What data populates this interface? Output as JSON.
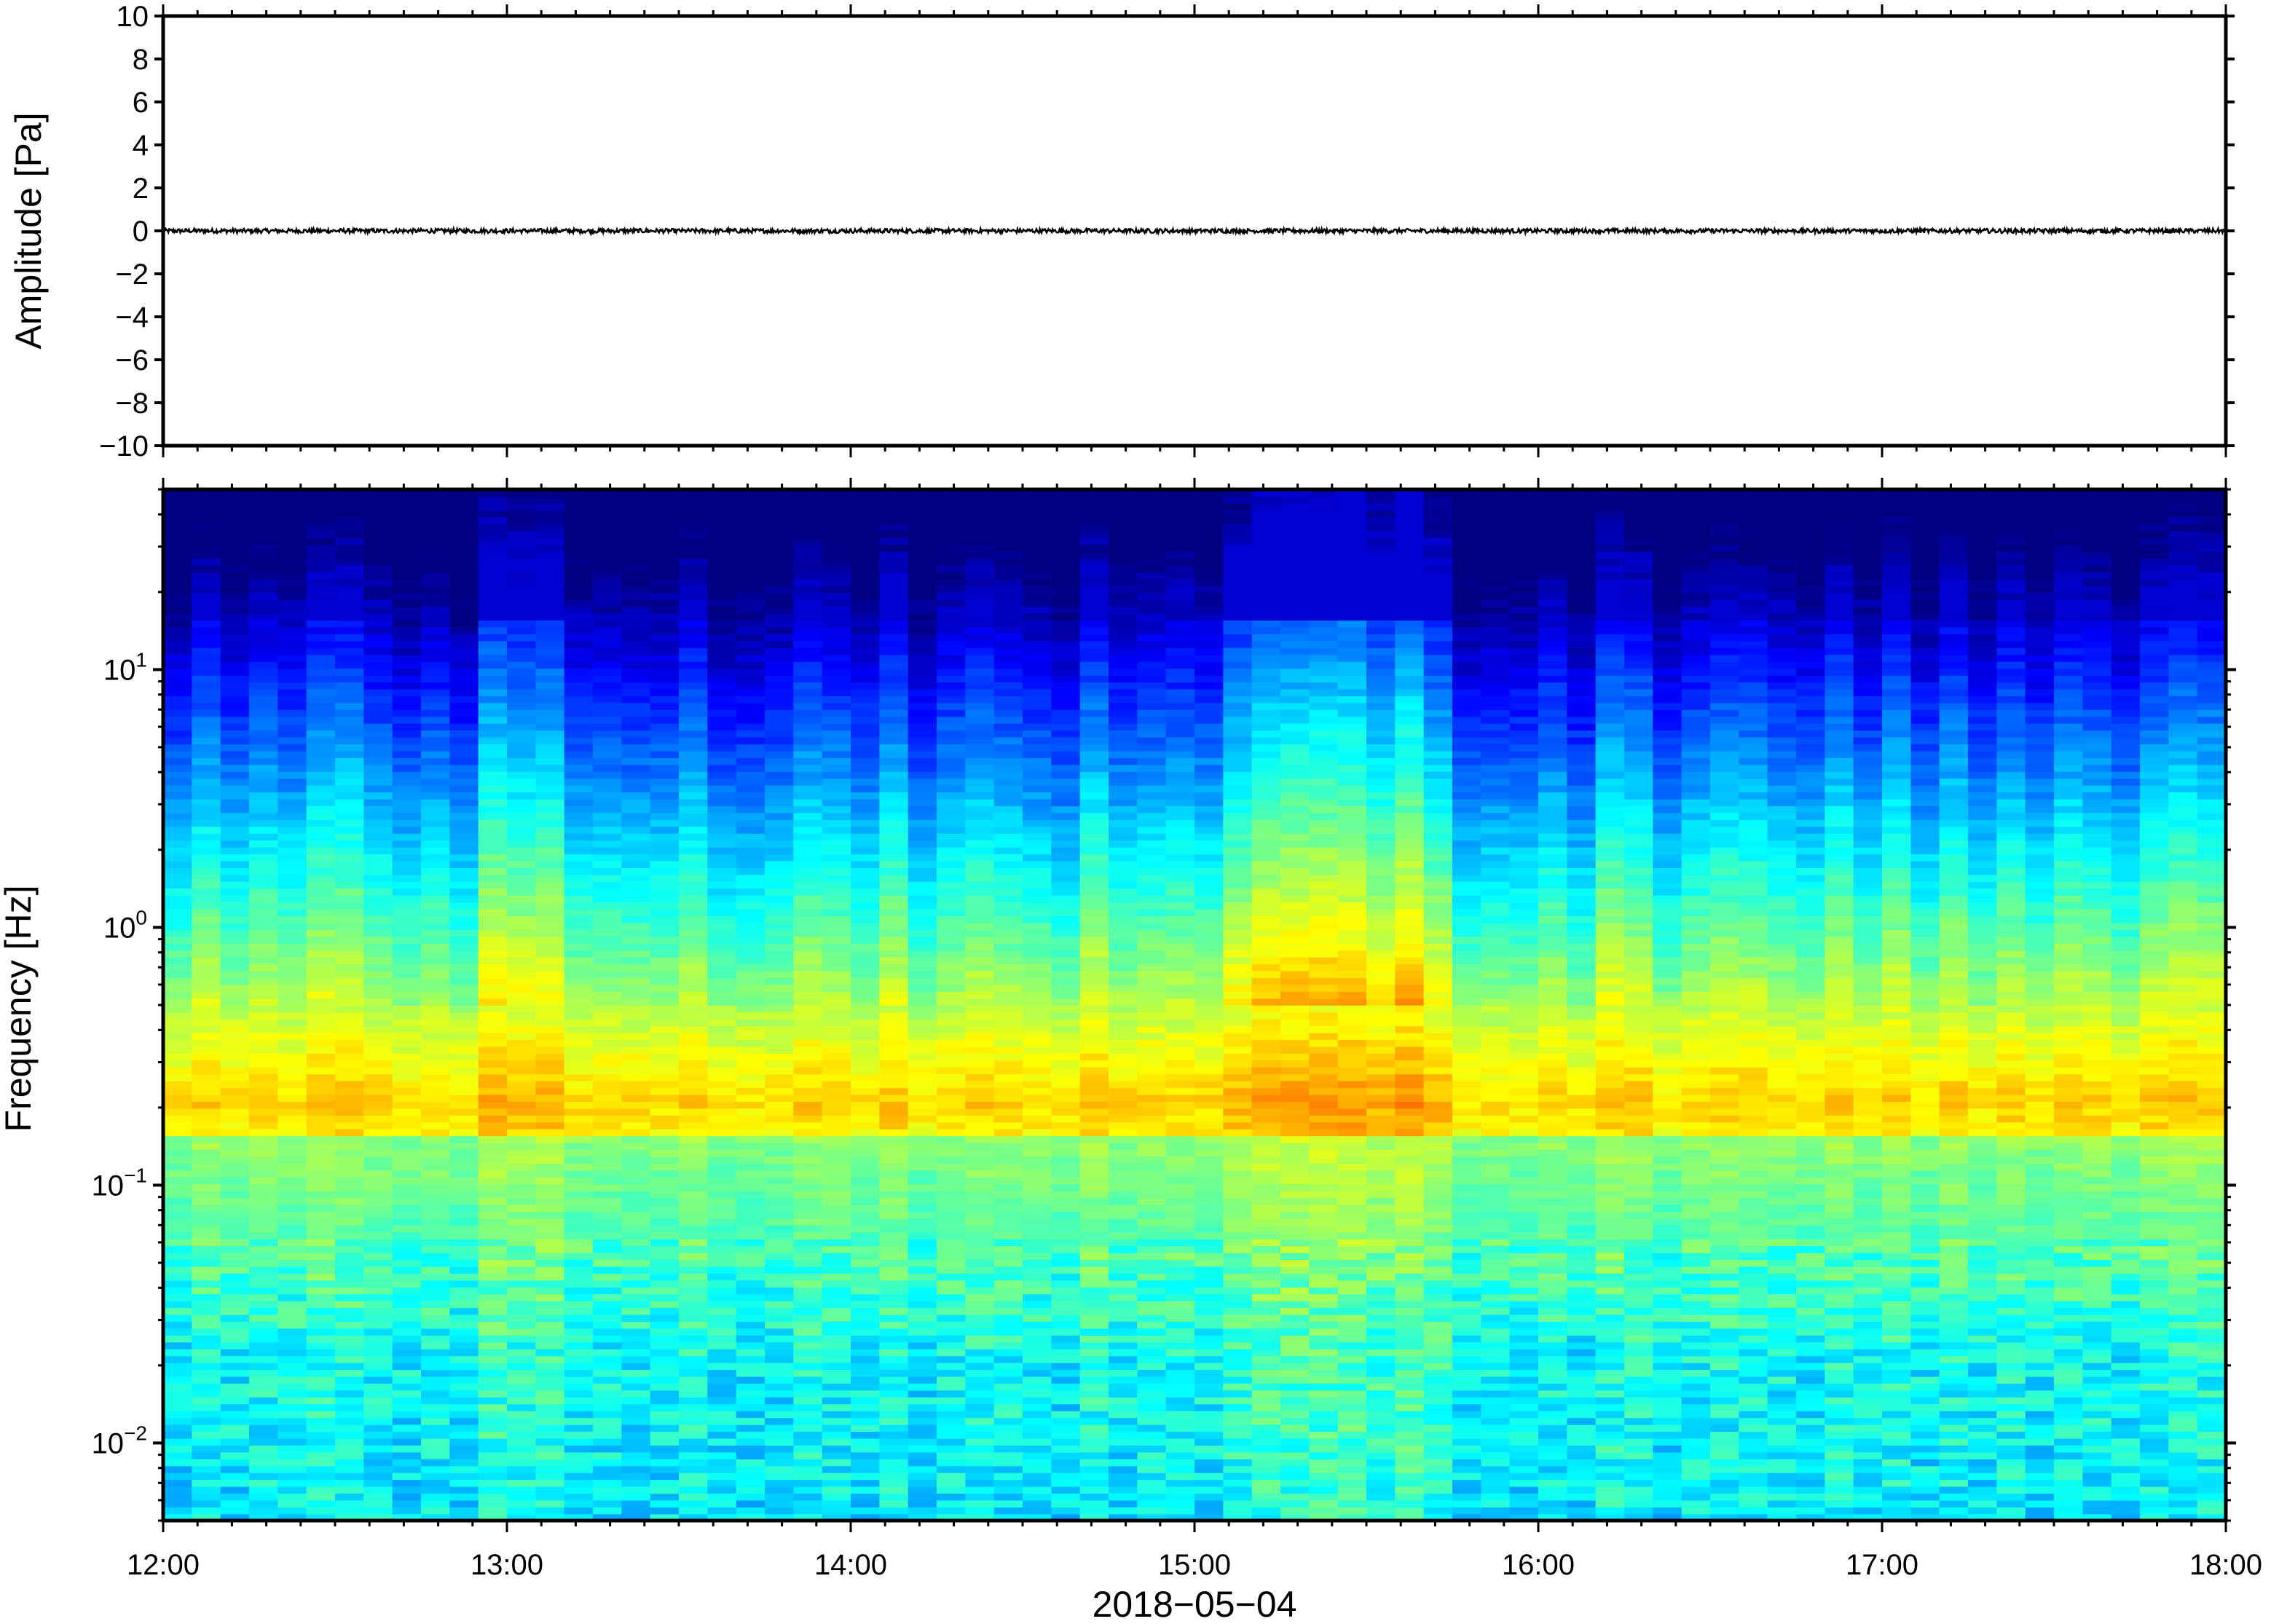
{
  "chart_data": [
    {
      "type": "line",
      "panel": "waveform",
      "ylabel": "Amplitude [Pa]",
      "ylim": [
        -10,
        10
      ],
      "yticks": [
        10,
        8,
        6,
        4,
        2,
        0,
        -2,
        -4,
        -6,
        -8,
        -10
      ],
      "ytick_labels": [
        "10",
        "8",
        "6",
        "4",
        "2",
        "0",
        "−2",
        "−4",
        "−6",
        "−8",
        "−10"
      ],
      "xlim": [
        "12:00",
        "18:00"
      ],
      "grid": false,
      "series": [
        {
          "description_values": "near-zero infrasound trace",
          "x_range": [
            "12:00",
            "18:00"
          ],
          "y_min": -0.1,
          "y_max": 0.1,
          "color": "#000000"
        }
      ]
    },
    {
      "type": "heatmap",
      "panel": "spectrogram",
      "ylabel": "Frequency [Hz]",
      "y_scale": "log",
      "ylim": [
        0.005,
        50
      ],
      "yticks": [
        0.01,
        0.1,
        1,
        10
      ],
      "ytick_labels": [
        {
          "base": "10",
          "exp": "−2"
        },
        {
          "base": "10",
          "exp": "−1"
        },
        {
          "base": "10",
          "exp": "0"
        },
        {
          "base": "10",
          "exp": "1"
        }
      ],
      "xlabel": "2018−05−04",
      "xlim": [
        "12:00",
        "18:00"
      ],
      "xtick_labels": [
        "12:00",
        "13:00",
        "14:00",
        "15:00",
        "16:00",
        "17:00",
        "18:00"
      ],
      "colormap": "jet",
      "time_columns": 72,
      "peak_power_band_hz": [
        0.15,
        0.3
      ],
      "grid": false
    }
  ],
  "colors": {
    "frame": "#000000",
    "trace": "#000000",
    "background": "#ffffff"
  }
}
